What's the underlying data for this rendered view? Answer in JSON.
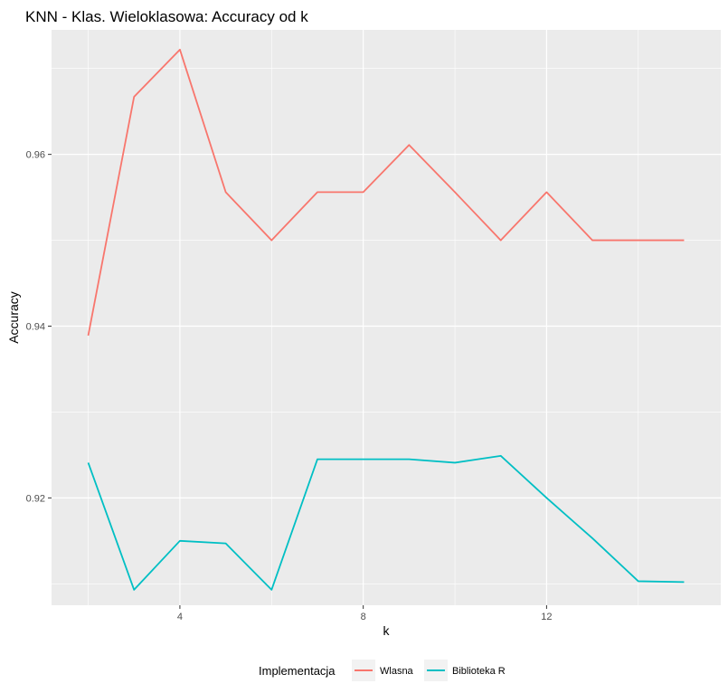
{
  "chart_data": {
    "type": "line",
    "title": "KNN - Klas. Wieloklasowa: Accuracy od k",
    "xlabel": "k",
    "ylabel": "Accuracy",
    "xlim": [
      1.2,
      15.8
    ],
    "ylim": [
      0.9075,
      0.9745
    ],
    "x_ticks": [
      4,
      8,
      12
    ],
    "x_tick_labels": [
      "4",
      "8",
      "12"
    ],
    "y_ticks": [
      0.92,
      0.94,
      0.96
    ],
    "y_tick_labels": [
      "0.92",
      "0.94",
      "0.96"
    ],
    "grid": true,
    "legend": {
      "title": "Implementacja",
      "position": "bottom"
    },
    "x": [
      2,
      3,
      4,
      5,
      6,
      7,
      8,
      9,
      10,
      11,
      12,
      13,
      14,
      15
    ],
    "series": [
      {
        "name": "Wlasna",
        "color": "#F8766D",
        "values": [
          0.9389,
          0.9667,
          0.9722,
          0.9556,
          0.95,
          0.9556,
          0.9556,
          0.9611,
          0.9556,
          0.95,
          0.9556,
          0.95,
          0.95,
          0.95
        ]
      },
      {
        "name": "Biblioteka R",
        "color": "#00BFC4",
        "values": [
          0.9241,
          0.9093,
          0.915,
          0.9147,
          0.9093,
          0.9245,
          0.9245,
          0.9245,
          0.9241,
          0.9249,
          0.92,
          0.9153,
          0.9103,
          0.9102
        ]
      }
    ]
  }
}
